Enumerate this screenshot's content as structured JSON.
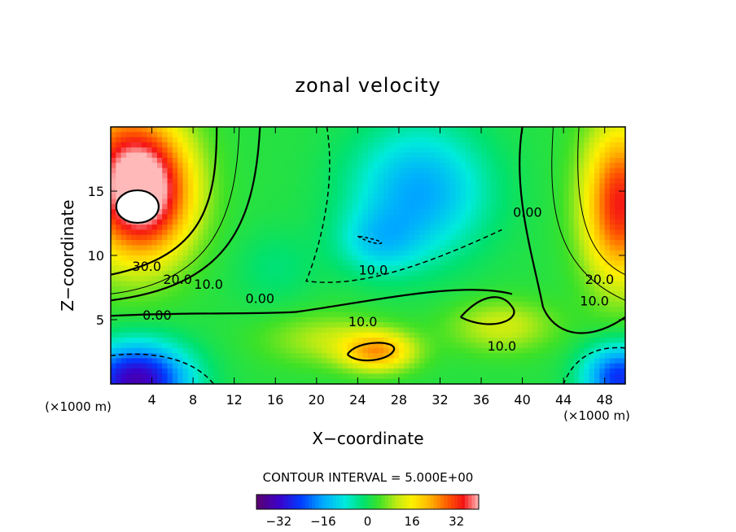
{
  "chart_data": {
    "type": "heatmap",
    "title": "zonal velocity",
    "xlabel": "X−coordinate",
    "ylabel": "Z−coordinate",
    "x_unit_left": "(×1000 m)",
    "x_unit_right": "(×1000 m)",
    "xlim": [
      0,
      50
    ],
    "ylim": [
      0,
      20
    ],
    "x_ticks": [
      4,
      8,
      12,
      16,
      20,
      24,
      28,
      32,
      36,
      40,
      44,
      48
    ],
    "y_ticks": [
      5,
      10,
      15
    ],
    "contour_interval_label": "CONTOUR INTERVAL = 5.000E+00",
    "colorbar": {
      "min": -40,
      "max": 40,
      "ticks": [
        -32,
        -16,
        0,
        16,
        32
      ]
    },
    "contour_labels": [
      {
        "text": "30.0",
        "x": 3.5,
        "y": 8.8
      },
      {
        "text": "20.0",
        "x": 6.5,
        "y": 7.8
      },
      {
        "text": "10.0",
        "x": 9.5,
        "y": 7.4
      },
      {
        "text": "0.00",
        "x": 4.5,
        "y": 5.0
      },
      {
        "text": "0.00",
        "x": 14.5,
        "y": 6.3
      },
      {
        "text": "10.0",
        "x": 25.5,
        "y": 8.5
      },
      {
        "text": "10.0",
        "x": 24.5,
        "y": 4.5
      },
      {
        "text": "0.00",
        "x": 40.5,
        "y": 13.0
      },
      {
        "text": "20.0",
        "x": 47.5,
        "y": 7.8
      },
      {
        "text": "10.0",
        "x": 47.0,
        "y": 6.1
      },
      {
        "text": "10.0",
        "x": 38.0,
        "y": 2.6
      }
    ],
    "field_features": [
      {
        "x": 3.5,
        "y": 15.0,
        "sx": 4.5,
        "sy": 5.0,
        "amp": 38
      },
      {
        "x": 0.0,
        "y": 17.0,
        "sx": 5.0,
        "sy": 7.0,
        "amp": 16
      },
      {
        "x": 49.5,
        "y": 14.0,
        "sx": 3.5,
        "sy": 6.0,
        "amp": 32
      },
      {
        "x": 2.5,
        "y": 0.3,
        "sx": 5.0,
        "sy": 2.8,
        "amp": -36
      },
      {
        "x": 49.5,
        "y": 0.5,
        "sx": 3.5,
        "sy": 2.5,
        "amp": -28
      },
      {
        "x": 30.0,
        "y": 15.0,
        "sx": 6.5,
        "sy": 5.0,
        "amp": -18
      },
      {
        "x": 26.0,
        "y": 11.0,
        "sx": 4.0,
        "sy": 2.5,
        "amp": -10
      },
      {
        "x": 26.0,
        "y": 2.5,
        "sx": 3.5,
        "sy": 1.5,
        "amp": 20
      },
      {
        "x": 21.0,
        "y": 3.5,
        "sx": 6.0,
        "sy": 2.0,
        "amp": 8
      },
      {
        "x": 38.0,
        "y": 4.5,
        "sx": 5.0,
        "sy": 2.0,
        "amp": 10
      },
      {
        "x": 16.0,
        "y": 9.0,
        "sx": 4.0,
        "sy": 3.0,
        "amp": -4
      }
    ]
  }
}
